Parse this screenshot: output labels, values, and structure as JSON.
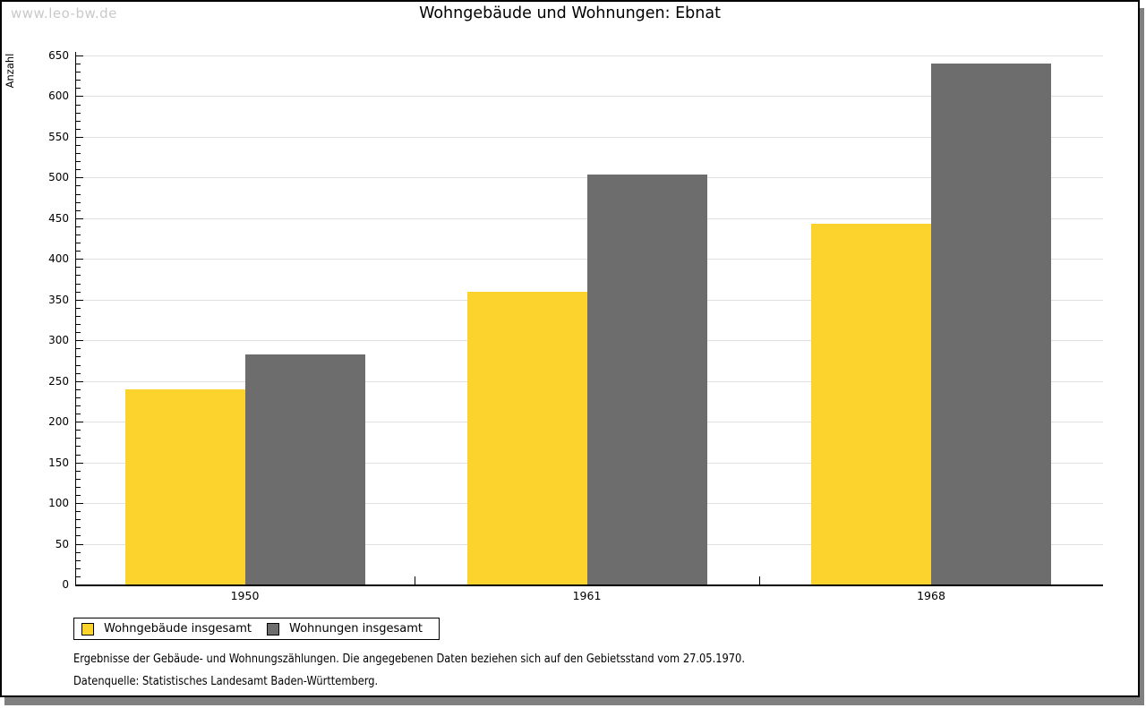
{
  "watermark": "www.leo-bw.de",
  "title": "Wohngebäude und Wohnungen: Ebnat",
  "chart_data": {
    "type": "bar",
    "title": "Wohngebäude und Wohnungen: Ebnat",
    "categories": [
      "1950",
      "1961",
      "1968"
    ],
    "series": [
      {
        "name": "Wohngebäude insgesamt",
        "color": "#fcd32d",
        "values": [
          240,
          360,
          443
        ]
      },
      {
        "name": "Wohnungen insgesamt",
        "color": "#6d6d6d",
        "values": [
          283,
          504,
          640
        ]
      }
    ],
    "xlabel": "",
    "ylabel": "Anzahl",
    "ylim": [
      0,
      650
    ],
    "ytick_step": 50,
    "yminor_tick_step": 10,
    "grid": true,
    "legend_position": "bottom-left",
    "colors": {
      "gridline": "#e0e0e0",
      "axis": "#000000",
      "watermark": "#c9c9c9",
      "frame_shadow": "#808080"
    }
  },
  "footnotes": {
    "line1": "Ergebnisse der Gebäude- und Wohnungszählungen. Die angegebenen Daten beziehen sich auf den Gebietsstand vom 27.05.1970.",
    "line2": "Datenquelle: Statistisches Landesamt Baden-Württemberg."
  }
}
